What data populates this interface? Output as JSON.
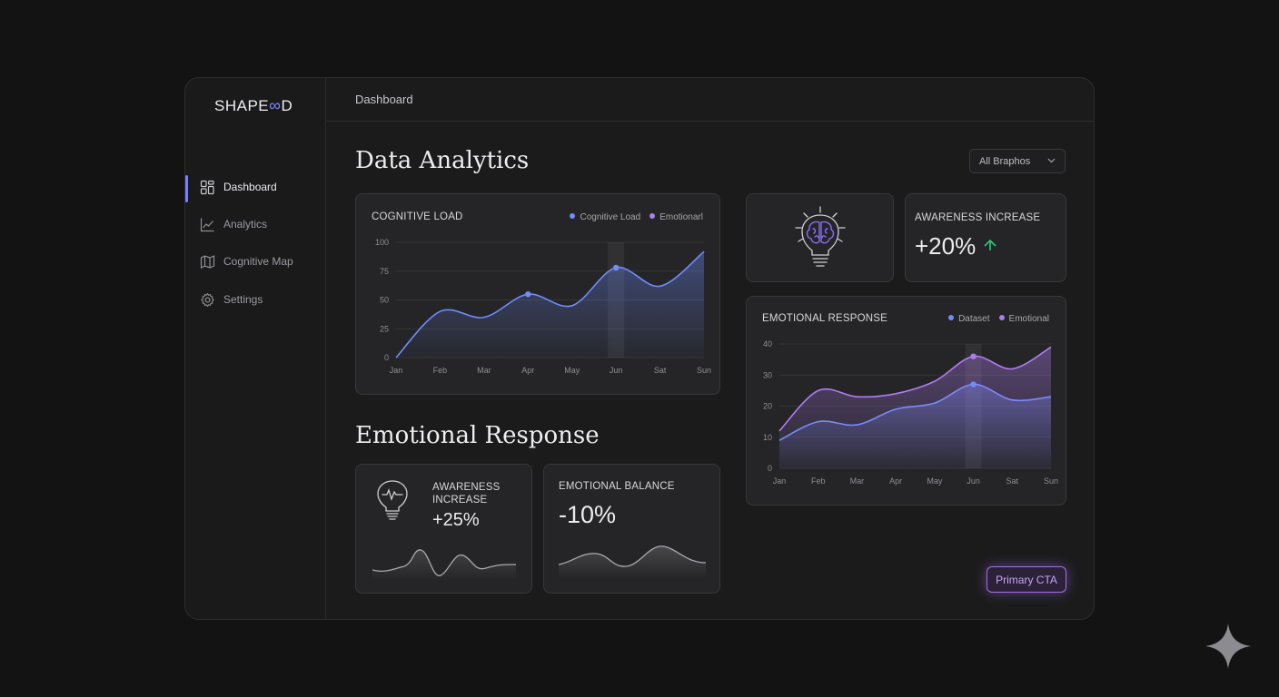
{
  "app": {
    "logo_prefix": "SHAPE",
    "logo_symbol": "∞",
    "logo_suffix": "D"
  },
  "sidebar": {
    "items": [
      {
        "label": "Dashboard",
        "icon": "dashboard-icon",
        "active": true
      },
      {
        "label": "Analytics",
        "icon": "analytics-icon",
        "active": false
      },
      {
        "label": "Cognitive Map",
        "icon": "map-icon",
        "active": false
      },
      {
        "label": "Settings",
        "icon": "gear-icon",
        "active": false
      }
    ]
  },
  "header": {
    "breadcrumb": "Dashboard"
  },
  "main": {
    "title": "Data Analytics",
    "filter": {
      "selected": "All Braphos"
    },
    "section2_title": "Emotional Response",
    "cta_label": "Primary CTA"
  },
  "cards": {
    "cognitive_load": {
      "title": "COGNITIVE LOAD",
      "legend": [
        "Cognitive Load",
        "Emotionarl"
      ]
    },
    "awareness_top": {
      "title": "AWARENESS INCREASE",
      "value": "+20%",
      "trend": "up"
    },
    "emotional_response": {
      "title": "EMOTIONAL RESPONSE",
      "legend": [
        "Dataset",
        "Emotional"
      ]
    },
    "awareness_small": {
      "title_line1": "AWARENESS",
      "title_line2": "INCREASE",
      "value": "+25%"
    },
    "emotional_balance": {
      "title": "EMOTIONAL BALANCE",
      "value": "-10%"
    }
  },
  "colors": {
    "accent_blue": "#6f8dff",
    "accent_purple": "#b07cf0",
    "positive": "#2ecc71"
  },
  "chart_data": [
    {
      "type": "area",
      "title": "COGNITIVE LOAD",
      "categories": [
        "Jan",
        "Feb",
        "Mar",
        "Apr",
        "May",
        "Jun",
        "Sat",
        "Sun"
      ],
      "yticks": [
        0,
        25,
        50,
        75,
        100
      ],
      "ylim": [
        0,
        100
      ],
      "series": [
        {
          "name": "Cognitive Load",
          "values": [
            0,
            40,
            35,
            55,
            45,
            78,
            62,
            92
          ]
        }
      ],
      "highlight_category": "Jun",
      "grid": true,
      "legend_position": "top-right"
    },
    {
      "type": "area",
      "title": "EMOTIONAL RESPONSE",
      "categories": [
        "Jan",
        "Feb",
        "Mar",
        "Apr",
        "May",
        "Jun",
        "Sat",
        "Sun"
      ],
      "yticks": [
        0,
        10,
        20,
        30,
        40
      ],
      "ylim": [
        0,
        40
      ],
      "series": [
        {
          "name": "Dataset",
          "values": [
            9,
            15,
            14,
            19,
            21,
            27,
            22,
            23
          ]
        },
        {
          "name": "Emotional",
          "values": [
            12,
            25,
            23,
            24,
            28,
            36,
            32,
            39
          ]
        }
      ],
      "highlight_category": "Jun",
      "grid": true,
      "legend_position": "top-right"
    }
  ]
}
